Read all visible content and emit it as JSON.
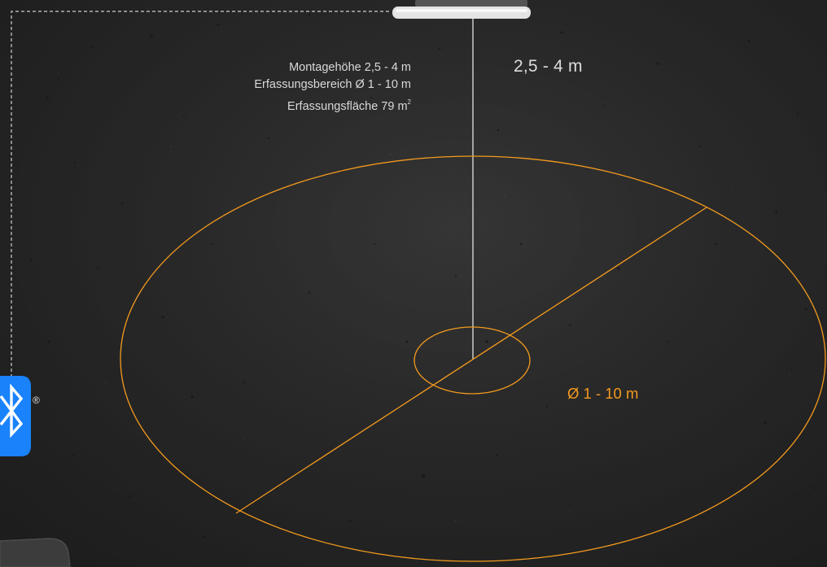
{
  "specs": {
    "mounting_height": "Montagehöhe 2,5 - 4 m",
    "detection_range": "Erfassungsbereich Ø 1 - 10 m",
    "detection_area": "Erfassungsfläche 79 m",
    "detection_area_superscript": "2"
  },
  "height_label": "2,5 - 4 m",
  "diameter_label": "Ø 1 - 10 m",
  "registered_mark": "®",
  "colors": {
    "accent": "#f39a1e",
    "background": "#2d2d2d",
    "text": "#d9d9d9",
    "bluetooth": "#1a82fb"
  },
  "icons": [
    "bluetooth-icon",
    "ceiling-sensor-icon"
  ]
}
